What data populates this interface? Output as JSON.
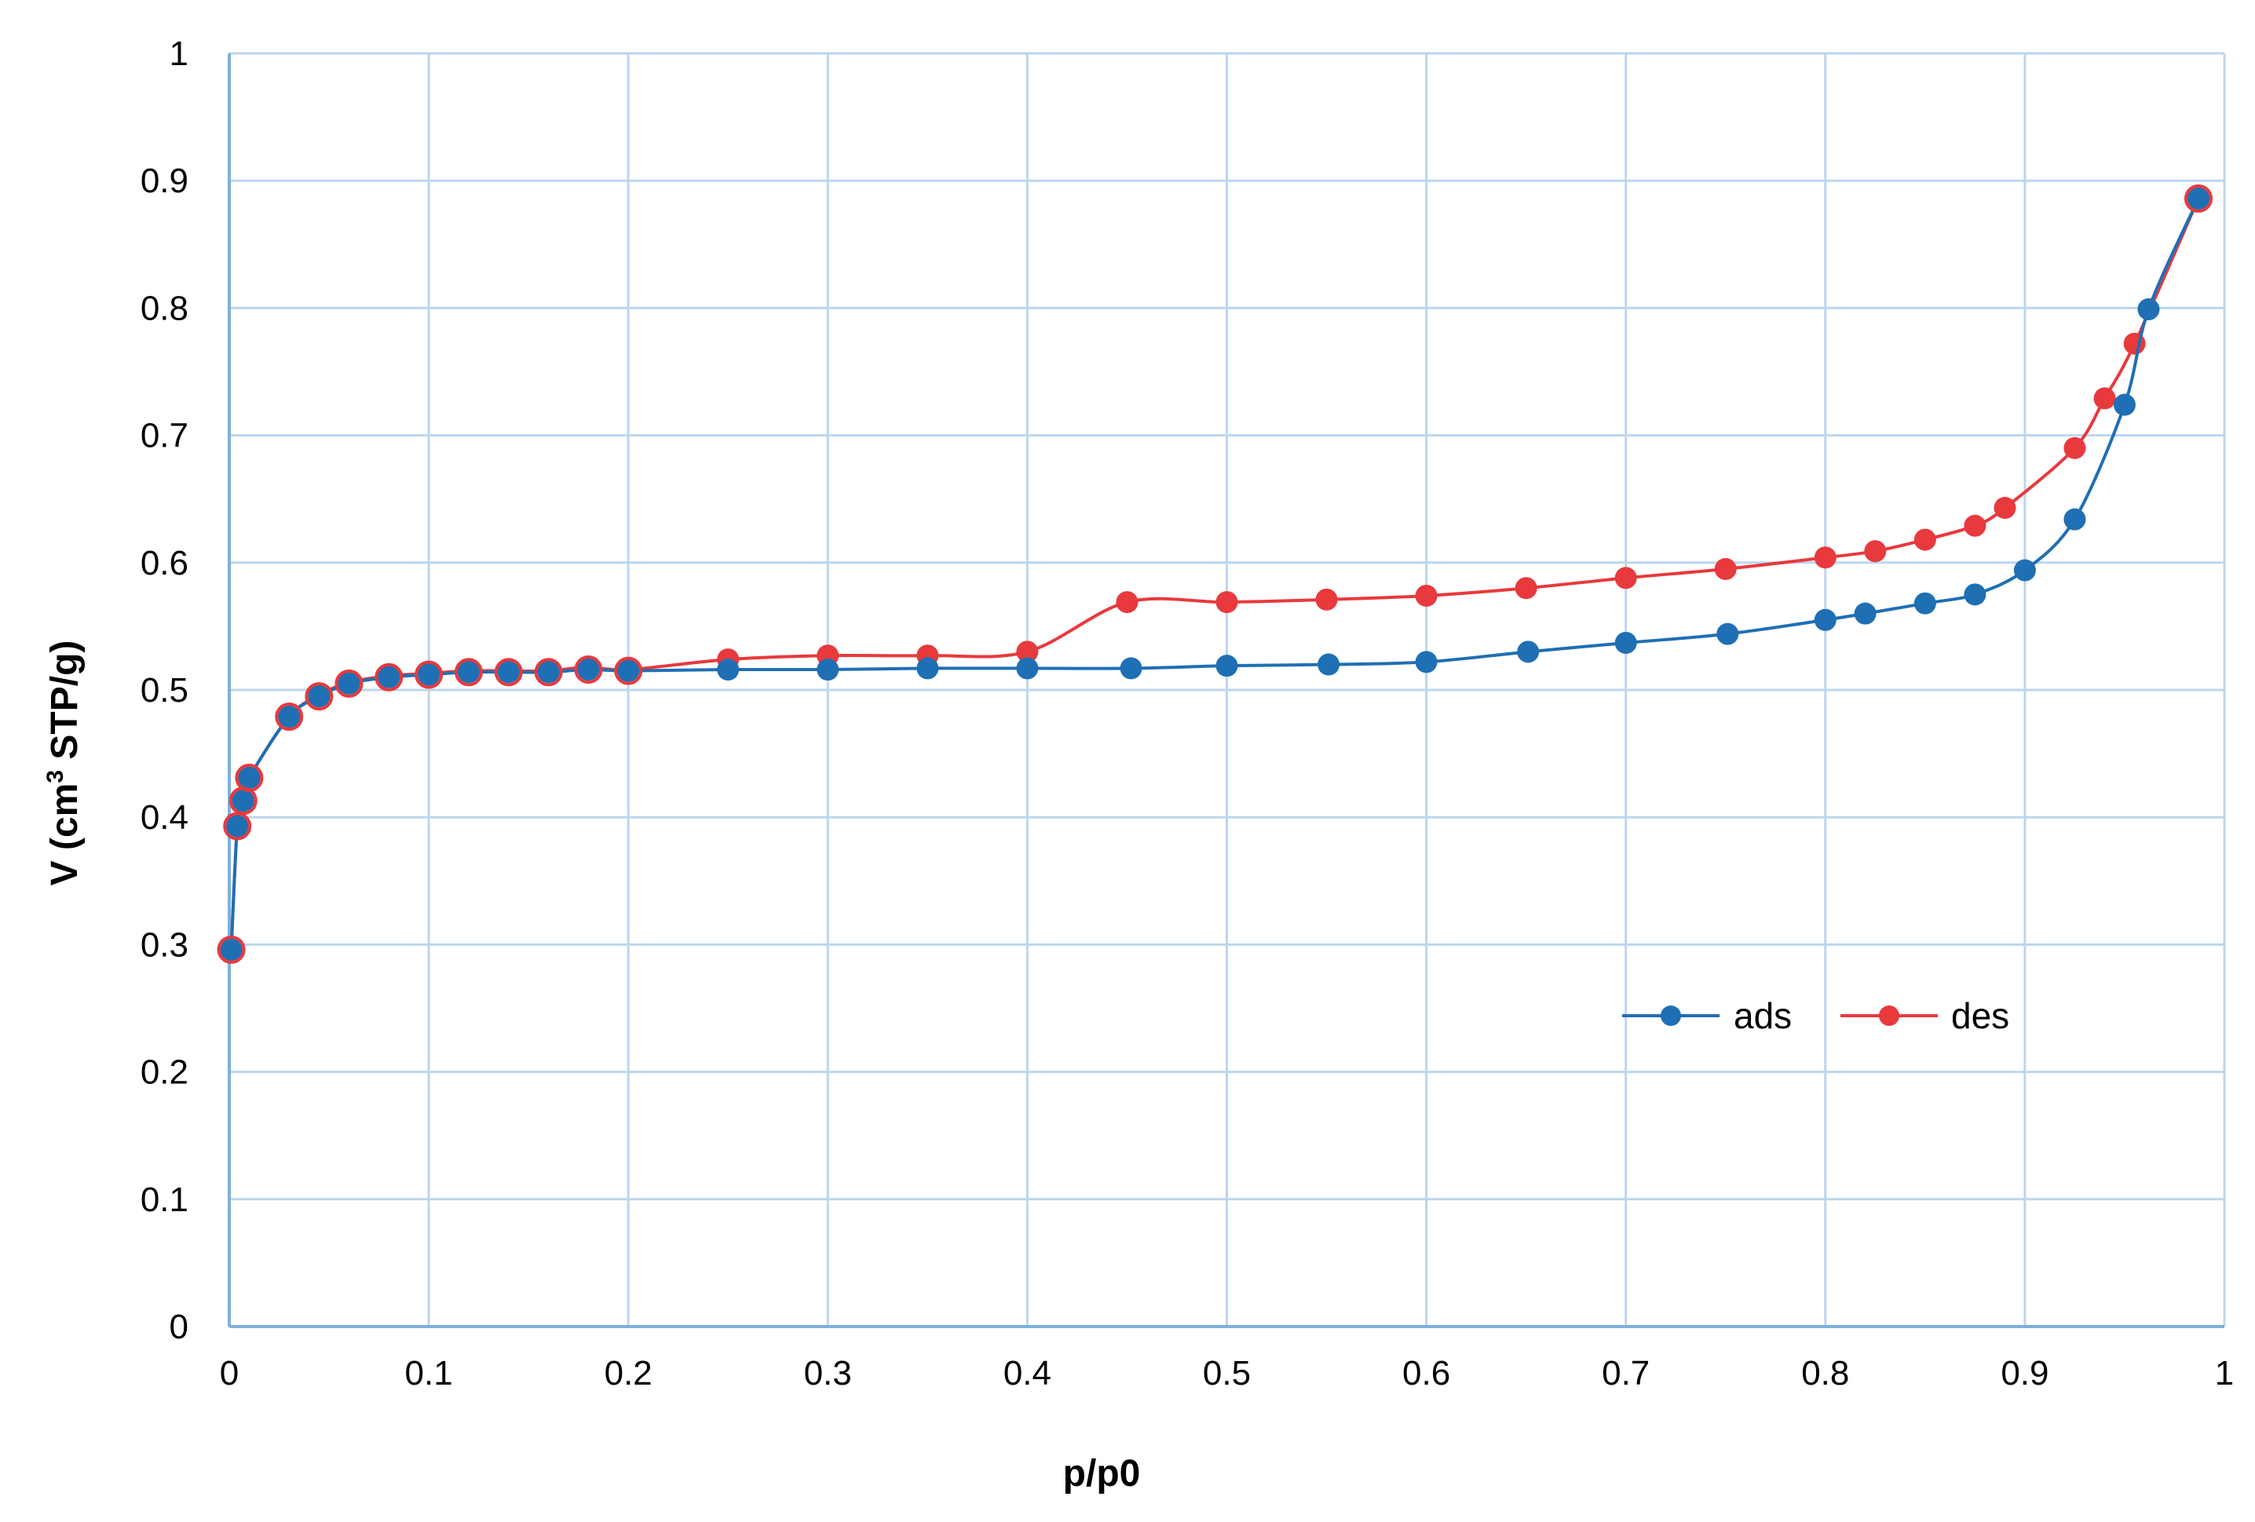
{
  "chart_data": {
    "type": "line",
    "title": "",
    "xlabel": "p/p0",
    "ylabel_main": "V (cm",
    "ylabel_sup": "3",
    "ylabel_rest": " STP/g)",
    "xlim": [
      0,
      1
    ],
    "ylim": [
      0,
      1
    ],
    "x_ticks": [
      0,
      0.1,
      0.2,
      0.3,
      0.4,
      0.5,
      0.6,
      0.7,
      0.8,
      0.9,
      1
    ],
    "x_tick_labels": [
      "0",
      "0.1",
      "0.2",
      "0.3",
      "0.4",
      "0.5",
      "0.6",
      "0.7",
      "0.8",
      "0.9",
      "1"
    ],
    "y_ticks": [
      0,
      0.1,
      0.2,
      0.3,
      0.4,
      0.5,
      0.6,
      0.7,
      0.8,
      0.9,
      1
    ],
    "y_tick_labels": [
      "0",
      "0.1",
      "0.2",
      "0.3",
      "0.4",
      "0.5",
      "0.6",
      "0.7",
      "0.8",
      "0.9",
      "1"
    ],
    "grid": true,
    "legend_position": "right-middle",
    "series": [
      {
        "name": "ads",
        "color": "#1f6fb4",
        "x": [
          0.001,
          0.004,
          0.007,
          0.01,
          0.03,
          0.045,
          0.06,
          0.08,
          0.1,
          0.12,
          0.14,
          0.16,
          0.18,
          0.2,
          0.25,
          0.3,
          0.35,
          0.4,
          0.452,
          0.5,
          0.551,
          0.6,
          0.651,
          0.7,
          0.751,
          0.8,
          0.82,
          0.85,
          0.875,
          0.9,
          0.925,
          0.95,
          0.962,
          0.987
        ],
        "y": [
          0.296,
          0.393,
          0.413,
          0.431,
          0.479,
          0.495,
          0.505,
          0.51,
          0.512,
          0.514,
          0.514,
          0.514,
          0.516,
          0.515,
          0.516,
          0.516,
          0.517,
          0.517,
          0.517,
          0.519,
          0.52,
          0.522,
          0.53,
          0.537,
          0.544,
          0.555,
          0.56,
          0.568,
          0.575,
          0.594,
          0.634,
          0.724,
          0.799,
          0.886
        ]
      },
      {
        "name": "des",
        "color": "#e8393d",
        "x": [
          0.001,
          0.004,
          0.007,
          0.01,
          0.03,
          0.045,
          0.06,
          0.08,
          0.1,
          0.12,
          0.14,
          0.16,
          0.18,
          0.2,
          0.25,
          0.3,
          0.35,
          0.4,
          0.45,
          0.5,
          0.55,
          0.6,
          0.65,
          0.7,
          0.75,
          0.8,
          0.825,
          0.85,
          0.875,
          0.89,
          0.925,
          0.94,
          0.955,
          0.987
        ],
        "y": [
          0.296,
          0.393,
          0.413,
          0.431,
          0.479,
          0.496,
          0.506,
          0.511,
          0.513,
          0.515,
          0.515,
          0.515,
          0.518,
          0.516,
          0.524,
          0.527,
          0.527,
          0.53,
          0.569,
          0.569,
          0.571,
          0.574,
          0.58,
          0.588,
          0.595,
          0.604,
          0.609,
          0.618,
          0.629,
          0.643,
          0.69,
          0.729,
          0.772,
          0.886
        ]
      }
    ]
  }
}
